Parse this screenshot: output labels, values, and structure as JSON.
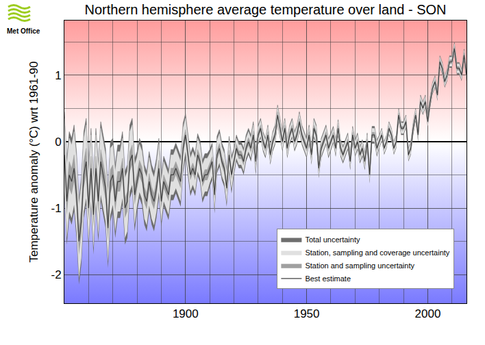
{
  "chart_data": {
    "type": "line",
    "title": "Northern hemisphere average temperature over land - SON",
    "ylabel": "Temperature anomaly (°C) wrt 1961-90",
    "annotations": [
      {
        "text": "Met Office"
      }
    ],
    "x": [
      1850,
      1851,
      1852,
      1853,
      1854,
      1855,
      1856,
      1857,
      1858,
      1859,
      1860,
      1861,
      1862,
      1863,
      1864,
      1865,
      1866,
      1867,
      1868,
      1869,
      1870,
      1871,
      1872,
      1873,
      1874,
      1875,
      1876,
      1877,
      1878,
      1879,
      1880,
      1881,
      1882,
      1883,
      1884,
      1885,
      1886,
      1887,
      1888,
      1889,
      1890,
      1891,
      1892,
      1893,
      1894,
      1895,
      1896,
      1897,
      1898,
      1899,
      1900,
      1901,
      1902,
      1903,
      1904,
      1905,
      1906,
      1907,
      1908,
      1909,
      1910,
      1911,
      1912,
      1913,
      1914,
      1915,
      1916,
      1917,
      1918,
      1919,
      1920,
      1921,
      1922,
      1923,
      1924,
      1925,
      1926,
      1927,
      1928,
      1929,
      1930,
      1931,
      1932,
      1933,
      1934,
      1935,
      1936,
      1937,
      1938,
      1939,
      1940,
      1941,
      1942,
      1943,
      1944,
      1945,
      1946,
      1947,
      1948,
      1949,
      1950,
      1951,
      1952,
      1953,
      1954,
      1955,
      1956,
      1957,
      1958,
      1959,
      1960,
      1961,
      1962,
      1963,
      1964,
      1965,
      1966,
      1967,
      1968,
      1969,
      1970,
      1971,
      1972,
      1973,
      1974,
      1975,
      1976,
      1977,
      1978,
      1979,
      1980,
      1981,
      1982,
      1983,
      1984,
      1985,
      1986,
      1987,
      1988,
      1989,
      1990,
      1991,
      1992,
      1993,
      1994,
      1995,
      1996,
      1997,
      1998,
      1999,
      2000,
      2001,
      2002,
      2003,
      2004,
      2005,
      2006,
      2007,
      2008,
      2009,
      2010,
      2011,
      2012,
      2013,
      2014,
      2015,
      2016
    ],
    "series": [
      {
        "name": "Total uncertainty",
        "type": "band",
        "color": "#6e6e6e",
        "error": [
          0.65,
          0.65,
          0.65,
          0.65,
          0.65,
          0.65,
          0.65,
          0.65,
          0.65,
          0.65,
          0.6,
          0.6,
          0.6,
          0.6,
          0.6,
          0.6,
          0.6,
          0.6,
          0.6,
          0.6,
          0.55,
          0.55,
          0.55,
          0.55,
          0.55,
          0.55,
          0.55,
          0.55,
          0.55,
          0.55,
          0.45,
          0.45,
          0.45,
          0.45,
          0.45,
          0.45,
          0.45,
          0.45,
          0.45,
          0.45,
          0.38,
          0.38,
          0.38,
          0.38,
          0.38,
          0.38,
          0.38,
          0.38,
          0.38,
          0.38,
          0.32,
          0.32,
          0.32,
          0.32,
          0.32,
          0.32,
          0.32,
          0.32,
          0.32,
          0.32,
          0.28,
          0.28,
          0.28,
          0.28,
          0.28,
          0.28,
          0.28,
          0.28,
          0.28,
          0.28,
          0.2,
          0.2,
          0.2,
          0.2,
          0.2,
          0.2,
          0.2,
          0.2,
          0.2,
          0.2,
          0.15,
          0.15,
          0.15,
          0.15,
          0.15,
          0.15,
          0.15,
          0.15,
          0.15,
          0.15,
          0.15,
          0.15,
          0.15,
          0.15,
          0.15,
          0.15,
          0.15,
          0.15,
          0.15,
          0.15,
          0.15,
          0.15,
          0.15,
          0.15,
          0.15,
          0.15,
          0.15,
          0.15,
          0.15,
          0.15,
          0.13,
          0.13,
          0.13,
          0.13,
          0.13,
          0.13,
          0.13,
          0.13,
          0.13,
          0.13,
          0.13,
          0.13,
          0.13,
          0.13,
          0.13,
          0.13,
          0.13,
          0.13,
          0.13,
          0.13,
          0.1,
          0.1,
          0.1,
          0.1,
          0.1,
          0.1,
          0.1,
          0.1,
          0.1,
          0.1,
          0.1,
          0.1,
          0.1,
          0.1,
          0.1,
          0.1,
          0.1,
          0.1,
          0.1,
          0.1,
          0.09,
          0.09,
          0.09,
          0.09,
          0.09,
          0.09,
          0.09,
          0.09,
          0.09,
          0.09,
          0.09,
          0.09,
          0.09,
          0.09,
          0.09,
          0.09,
          0.09
        ]
      },
      {
        "name": "Station, sampling and coverage uncertainty",
        "type": "band",
        "color": "#e0e0e0",
        "error": [
          0.55,
          0.55,
          0.55,
          0.55,
          0.55,
          0.55,
          0.55,
          0.55,
          0.55,
          0.55,
          0.5,
          0.5,
          0.5,
          0.5,
          0.5,
          0.5,
          0.5,
          0.5,
          0.5,
          0.5,
          0.45,
          0.45,
          0.45,
          0.45,
          0.45,
          0.45,
          0.45,
          0.45,
          0.45,
          0.45,
          0.36,
          0.36,
          0.36,
          0.36,
          0.36,
          0.36,
          0.36,
          0.36,
          0.36,
          0.36,
          0.3,
          0.3,
          0.3,
          0.3,
          0.3,
          0.3,
          0.3,
          0.3,
          0.3,
          0.3,
          0.25,
          0.25,
          0.25,
          0.25,
          0.25,
          0.25,
          0.25,
          0.25,
          0.25,
          0.25,
          0.22,
          0.22,
          0.22,
          0.22,
          0.22,
          0.22,
          0.22,
          0.22,
          0.22,
          0.22,
          0.15,
          0.15,
          0.15,
          0.15,
          0.15,
          0.15,
          0.15,
          0.15,
          0.15,
          0.15,
          0.12,
          0.12,
          0.12,
          0.12,
          0.12,
          0.12,
          0.12,
          0.12,
          0.12,
          0.12,
          0.12,
          0.12,
          0.12,
          0.12,
          0.12,
          0.12,
          0.12,
          0.12,
          0.12,
          0.12,
          0.12,
          0.12,
          0.12,
          0.12,
          0.12,
          0.12,
          0.12,
          0.12,
          0.12,
          0.12,
          0.1,
          0.1,
          0.1,
          0.1,
          0.1,
          0.1,
          0.1,
          0.1,
          0.1,
          0.1,
          0.1,
          0.1,
          0.1,
          0.1,
          0.1,
          0.1,
          0.1,
          0.1,
          0.1,
          0.1,
          0.08,
          0.08,
          0.08,
          0.08,
          0.08,
          0.08,
          0.08,
          0.08,
          0.08,
          0.08,
          0.08,
          0.08,
          0.08,
          0.08,
          0.08,
          0.08,
          0.08,
          0.08,
          0.08,
          0.08,
          0.07,
          0.07,
          0.07,
          0.07,
          0.07,
          0.07,
          0.07,
          0.07,
          0.07,
          0.07,
          0.07,
          0.07,
          0.07,
          0.07,
          0.07,
          0.07,
          0.07
        ]
      },
      {
        "name": "Station and sampling uncertainty",
        "type": "band",
        "color": "#a0a0a0",
        "error": [
          0.2,
          0.2,
          0.2,
          0.2,
          0.2,
          0.2,
          0.2,
          0.2,
          0.2,
          0.2,
          0.18,
          0.18,
          0.18,
          0.18,
          0.18,
          0.18,
          0.18,
          0.18,
          0.18,
          0.18,
          0.15,
          0.15,
          0.15,
          0.15,
          0.15,
          0.15,
          0.15,
          0.15,
          0.15,
          0.15,
          0.12,
          0.12,
          0.12,
          0.12,
          0.12,
          0.12,
          0.12,
          0.12,
          0.12,
          0.12,
          0.1,
          0.1,
          0.1,
          0.1,
          0.1,
          0.1,
          0.1,
          0.1,
          0.1,
          0.1,
          0.08,
          0.08,
          0.08,
          0.08,
          0.08,
          0.08,
          0.08,
          0.08,
          0.08,
          0.08,
          0.07,
          0.07,
          0.07,
          0.07,
          0.07,
          0.07,
          0.07,
          0.07,
          0.07,
          0.07,
          0.06,
          0.06,
          0.06,
          0.06,
          0.06,
          0.06,
          0.06,
          0.06,
          0.06,
          0.06,
          0.05,
          0.05,
          0.05,
          0.05,
          0.05,
          0.05,
          0.05,
          0.05,
          0.05,
          0.05,
          0.05,
          0.05,
          0.05,
          0.05,
          0.05,
          0.05,
          0.05,
          0.05,
          0.05,
          0.05,
          0.05,
          0.05,
          0.05,
          0.05,
          0.05,
          0.05,
          0.05,
          0.05,
          0.05,
          0.05,
          0.04,
          0.04,
          0.04,
          0.04,
          0.04,
          0.04,
          0.04,
          0.04,
          0.04,
          0.04,
          0.04,
          0.04,
          0.04,
          0.04,
          0.04,
          0.04,
          0.04,
          0.04,
          0.04,
          0.04,
          0.03,
          0.03,
          0.03,
          0.03,
          0.03,
          0.03,
          0.03,
          0.03,
          0.03,
          0.03,
          0.03,
          0.03,
          0.03,
          0.03,
          0.03,
          0.03,
          0.03,
          0.03,
          0.03,
          0.03,
          0.03,
          0.03,
          0.03,
          0.03,
          0.03,
          0.03,
          0.03,
          0.03,
          0.03,
          0.03,
          0.03,
          0.03,
          0.03,
          0.03,
          0.03,
          0.03,
          0.03
        ]
      },
      {
        "name": "Best estimate",
        "type": "line",
        "color": "#404040",
        "values": [
          -0.2,
          -0.9,
          -0.5,
          -0.6,
          -0.4,
          -0.8,
          -1.5,
          -1.2,
          -0.5,
          -0.3,
          -1.0,
          -0.4,
          -1.1,
          -0.4,
          -0.9,
          -0.3,
          -0.5,
          -0.7,
          -1.3,
          -0.6,
          -0.5,
          -0.9,
          -0.6,
          -0.6,
          -0.4,
          -1.0,
          -0.9,
          -0.3,
          -0.2,
          -0.8,
          -0.6,
          -0.4,
          -0.5,
          -0.8,
          -0.9,
          -0.6,
          -0.8,
          -0.9,
          -0.7,
          -0.4,
          -0.9,
          -0.6,
          -0.7,
          -0.8,
          -0.5,
          -0.5,
          -0.4,
          -0.5,
          -0.6,
          -0.1,
          0.1,
          -0.2,
          -0.5,
          -0.4,
          -0.5,
          -0.2,
          -0.3,
          -0.6,
          -0.5,
          -0.5,
          -0.4,
          -0.3,
          -0.8,
          -0.2,
          -0.1,
          -0.3,
          -0.4,
          -0.7,
          -0.2,
          -0.5,
          -0.3,
          -0.1,
          -0.2,
          -0.2,
          -0.3,
          -0.1,
          0.0,
          -0.1,
          0.1,
          -0.3,
          0.1,
          0.2,
          0.0,
          -0.1,
          0.1,
          -0.2,
          0.0,
          0.1,
          0.4,
          0.2,
          0.0,
          0.2,
          -0.1,
          0.1,
          0.2,
          0.0,
          0.1,
          0.3,
          0.1,
          0.0,
          -0.1,
          0.1,
          -0.2,
          0.2,
          0.1,
          -0.4,
          -0.1,
          0.0,
          0.1,
          -0.1,
          0.0,
          0.1,
          -0.1,
          0.2,
          -0.1,
          -0.2,
          -0.1,
          0.0,
          -0.3,
          0.1,
          -0.1,
          0.0,
          -0.2,
          -0.1,
          -0.3,
          0.0,
          -0.5,
          0.1,
          0.1,
          -0.1,
          0.0,
          0.1,
          -0.1,
          0.0,
          0.2,
          0.1,
          -0.1,
          0.0,
          0.4,
          0.2,
          0.2,
          0.3,
          -0.2,
          -0.1,
          0.2,
          0.4,
          0.1,
          0.6,
          0.5,
          0.6,
          0.3,
          0.6,
          0.8,
          0.9,
          0.7,
          1.2,
          1.1,
          0.9,
          1.0,
          1.2,
          1.2,
          1.4,
          1.1,
          1.1,
          1.0,
          1.3,
          1.0
        ]
      }
    ],
    "xlim": [
      1850,
      2016
    ],
    "ylim": [
      -2.43,
      1.82
    ],
    "xticks": [
      1900,
      1950,
      2000
    ],
    "yticks": [
      -2,
      -1,
      0,
      1
    ],
    "grid": true,
    "legend": "bottom right"
  }
}
